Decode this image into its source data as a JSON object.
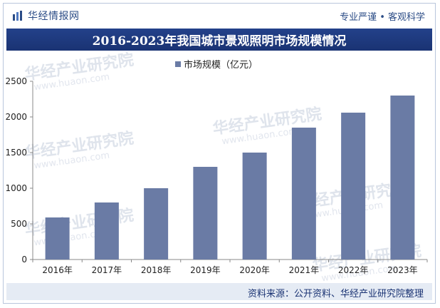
{
  "header": {
    "site_name": "华经情报网",
    "slogan": "专业严谨 • 客观科学",
    "logo_icon": "bar-chart-logo-icon"
  },
  "footer": {
    "source": "资料来源：公开资料、华经产业研究院整理"
  },
  "watermark": {
    "text": "华经产业研究院",
    "url": "www.huaon.com"
  },
  "colors": {
    "bar": "#6a7ba5",
    "title_band": "#1f3a80",
    "footer_band": "#e5ebf4",
    "brand": "#2b4c86"
  },
  "chart_data": {
    "type": "bar",
    "title": "2016-2023年我国城市景观照明市场规模情况",
    "categories": [
      "2016年",
      "2017年",
      "2018年",
      "2019年",
      "2020年",
      "2021年",
      "2022年",
      "2023年"
    ],
    "series": [
      {
        "name": "市场规模（亿元）",
        "values": [
          590,
          800,
          1000,
          1300,
          1500,
          1850,
          2060,
          2300
        ]
      }
    ],
    "ylim": [
      0,
      2500
    ],
    "yticks": [
      0,
      500,
      1000,
      1500,
      2000,
      2500
    ],
    "grid": false,
    "legend_position": "top-center"
  }
}
